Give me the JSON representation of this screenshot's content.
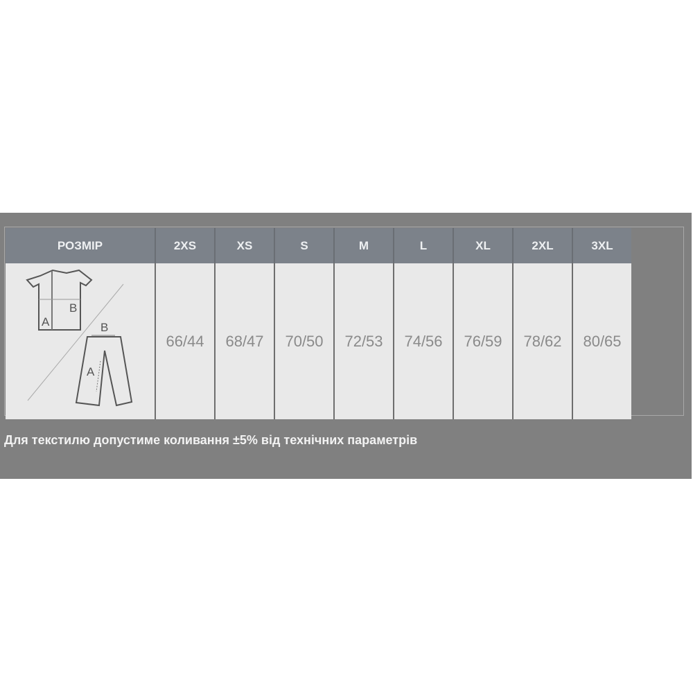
{
  "table": {
    "header_label": "РОЗМІР",
    "sizes": [
      "2XS",
      "XS",
      "S",
      "M",
      "L",
      "XL",
      "2XL",
      "3XL"
    ],
    "values": [
      "66/44",
      "68/47",
      "70/50",
      "72/53",
      "74/56",
      "76/59",
      "78/62",
      "80/65"
    ],
    "diagram": {
      "shirt_labels": [
        "A",
        "B"
      ],
      "pants_labels": [
        "A",
        "B"
      ]
    }
  },
  "note": "Для текстилю допустиме коливання ±5% від технічних параметрів",
  "colors": {
    "panel": "#808080",
    "header": "#7c828a",
    "body": "#e9e9e9"
  }
}
